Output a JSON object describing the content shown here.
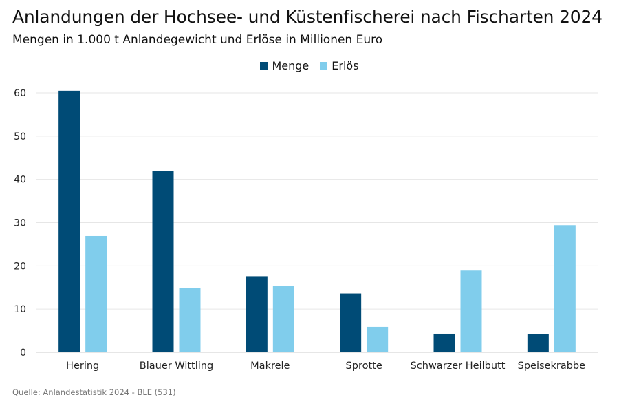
{
  "title": "Anlandungen der Hochsee- und Küstenfischerei nach Fischarten 2024",
  "subtitle": "Mengen in 1.000 t Anlandegewicht und Erlöse in Millionen Euro",
  "source": "Quelle: Anlandestatistik 2024 - BLE (531)",
  "colors": {
    "menge": "#004b76",
    "erloes": "#80cdec",
    "grid": "#e6e6e6",
    "axis": "#cccccc"
  },
  "chart_data": {
    "type": "bar",
    "categories": [
      "Hering",
      "Blauer Wittling",
      "Makrele",
      "Sprotte",
      "Schwarzer Heilbutt",
      "Speisekrabbe"
    ],
    "series": [
      {
        "name": "Menge",
        "values": [
          60.5,
          41.9,
          17.6,
          13.6,
          4.3,
          4.2
        ]
      },
      {
        "name": "Erlös",
        "values": [
          26.9,
          14.8,
          15.3,
          5.9,
          18.9,
          29.4
        ]
      }
    ],
    "ylim": [
      0,
      60
    ],
    "yticks": [
      "0",
      "10",
      "20",
      "30",
      "40",
      "50",
      "60"
    ],
    "legend": "top-center",
    "grid": true
  }
}
